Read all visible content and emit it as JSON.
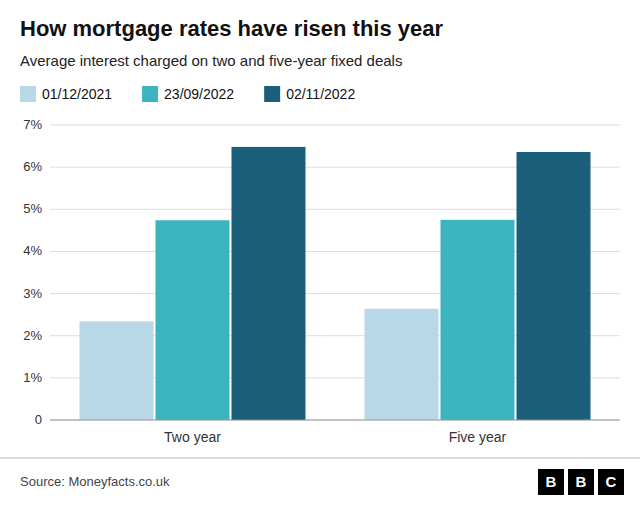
{
  "chart_data": {
    "type": "bar",
    "title": "How mortgage rates have risen this year",
    "subtitle": "Average interest charged on two and five-year fixed deals",
    "categories": [
      "Two year",
      "Five year"
    ],
    "series": [
      {
        "name": "01/12/2021",
        "color": "#b8d8e8",
        "values": [
          2.34,
          2.64
        ]
      },
      {
        "name": "23/09/2022",
        "color": "#3ab5c0",
        "values": [
          4.74,
          4.75
        ]
      },
      {
        "name": "02/11/2022",
        "color": "#1b5f7a",
        "values": [
          6.48,
          6.36
        ]
      }
    ],
    "ylim": [
      0,
      7
    ],
    "yticks": [
      0,
      {
        "value": 1,
        "label": "1%"
      },
      {
        "value": 2,
        "label": "2%"
      },
      {
        "value": 3,
        "label": "3%"
      },
      {
        "value": 4,
        "label": "4%"
      },
      {
        "value": 5,
        "label": "5%"
      },
      {
        "value": 6,
        "label": "6%"
      },
      {
        "value": 7,
        "label": "7%"
      }
    ],
    "grid": true,
    "legend": "top-left",
    "source": "Source: Moneyfacts.co.uk",
    "logo": [
      "B",
      "B",
      "C"
    ]
  }
}
